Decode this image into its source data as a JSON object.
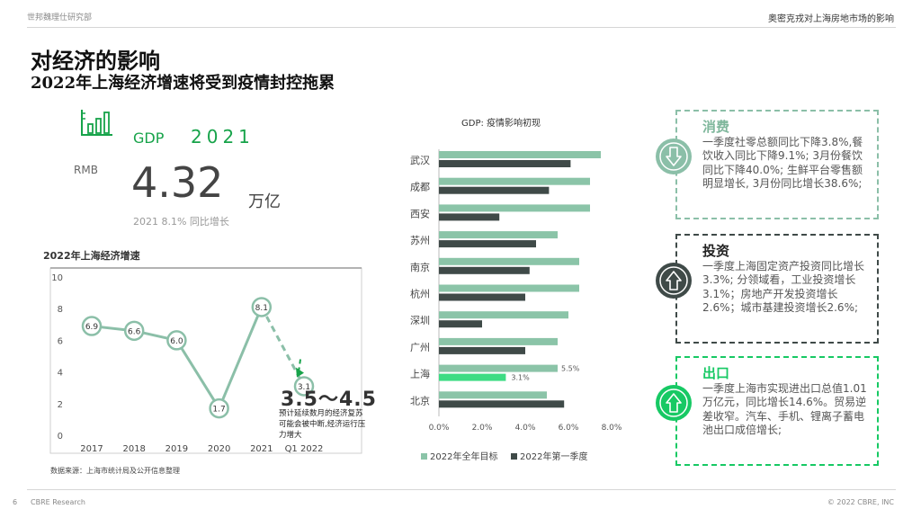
{
  "header": {
    "left": "世邦魏理仕研究部",
    "right": "奥密克戎对上海房地市场的影响"
  },
  "title": {
    "main": "对经济的影响",
    "sub": "2022年上海经济增速将受到疫情封控拖累"
  },
  "kpi": {
    "icon": "bar-chart-icon",
    "label": "GDP",
    "year": "2021",
    "currency": "RMB",
    "value": "4.32",
    "unit": "万亿",
    "note": "2021  8.1% 同比增长"
  },
  "forecast": {
    "range": "3.5～4.5",
    "note": "预计延续数月的经济复苏可能会被中断,经济运行压力增大"
  },
  "source_note": "数据来源：上海市统计局及公开信息整理",
  "chart_data": [
    {
      "type": "line",
      "title": "2022年上海经济增速",
      "categories": [
        "2017",
        "2018",
        "2019",
        "2020",
        "2021",
        "Q1 2022"
      ],
      "values": [
        6.9,
        6.6,
        6.0,
        1.7,
        8.1,
        3.1
      ],
      "data_labels": [
        "6.9",
        "6.6",
        "6.0",
        "1.7",
        "8.1",
        "3.1"
      ],
      "ylim": [
        0,
        10
      ],
      "yticks": [
        "0",
        "2",
        "4",
        "6",
        "8",
        "10"
      ],
      "grid": false,
      "colors": {
        "line": "#8bbfa8",
        "accent": "#17a34a"
      }
    },
    {
      "type": "bar",
      "orientation": "horizontal",
      "title": "GDP: 疫情影响初现",
      "categories": [
        "武汉",
        "成都",
        "西安",
        "苏州",
        "南京",
        "杭州",
        "深圳",
        "广州",
        "上海",
        "北京"
      ],
      "series": [
        {
          "name": "2022年全年目标",
          "values": [
            7.5,
            7.0,
            7.0,
            5.5,
            6.5,
            6.5,
            6.0,
            5.5,
            5.5,
            5.0
          ]
        },
        {
          "name": "2022年第一季度",
          "values": [
            6.1,
            5.1,
            2.8,
            4.5,
            4.2,
            4.0,
            2.0,
            4.0,
            3.1,
            5.8
          ]
        }
      ],
      "highlight_labels": {
        "target": "5.5%",
        "q1": "3.1%"
      },
      "xlim": [
        0,
        8
      ],
      "xticks": [
        "0.0%",
        "2.0%",
        "4.0%",
        "6.0%",
        "8.0%"
      ],
      "legend_position": "bottom",
      "colors": {
        "target": "#8bc4a8",
        "q1": "#3f4a48",
        "highlight": "#3ddc84"
      }
    }
  ],
  "panels": [
    {
      "title": "消费",
      "body": "一季度社零总额同比下降3.8%,餐饮收入同比下降9.1%; 3月份餐饮同比下降40.0%; 生鲜平台零售额明显增长, 3月份同比增长38.6%;",
      "icon": "arrow-down-icon",
      "color": "#8bbfa8"
    },
    {
      "title": "投资",
      "body": "一季度上海固定资产投资同比增长3.3%; 分领域看，工业投资增长3.1%；房地产开发投资增长2.6%；城市基建投资增长2.6%;",
      "icon": "arrow-up-icon",
      "color": "#3f4a48"
    },
    {
      "title": "出口",
      "body": "一季度上海市实现进出口总值1.01万亿元，同比增长14.6%。贸易逆差收窄。汽车、手机、锂离子蓄电池出口成倍增长;",
      "icon": "arrow-up-icon",
      "color": "#17c964"
    }
  ],
  "footer": {
    "page": "6",
    "brand": "CBRE Research",
    "copyright": "© 2022 CBRE, INC"
  }
}
